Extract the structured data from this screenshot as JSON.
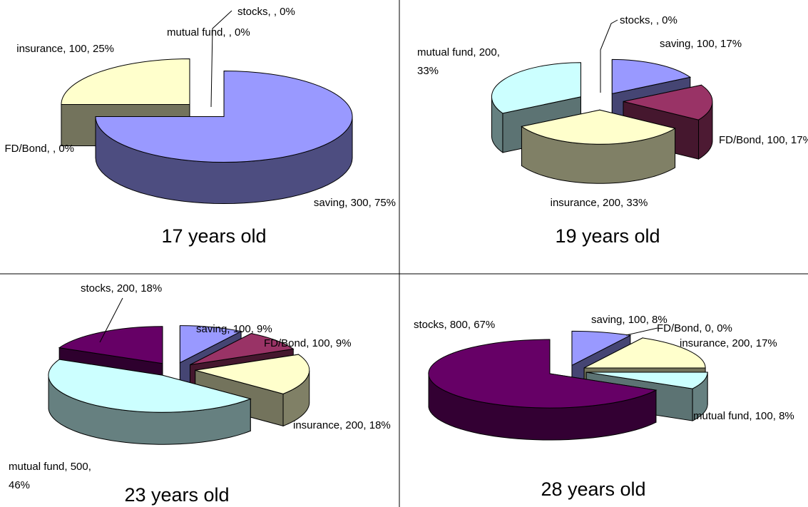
{
  "colors": {
    "saving": "#9999ff",
    "FD/Bond": "#993366",
    "insurance": "#ffffcc",
    "mutual fund": "#ccffff",
    "stocks": "#660066"
  },
  "chart_data": [
    {
      "type": "pie",
      "title": "17 years old",
      "slices": [
        {
          "name": "saving",
          "value": 300,
          "percent": 75,
          "label": "saving, 300, 75%"
        },
        {
          "name": "FD/Bond",
          "value": null,
          "percent": 0,
          "label": "FD/Bond, , 0%"
        },
        {
          "name": "insurance",
          "value": 100,
          "percent": 25,
          "label": "insurance, 100, 25%"
        },
        {
          "name": "mutual fund",
          "value": null,
          "percent": 0,
          "label": "mutual fund, , 0%"
        },
        {
          "name": "stocks",
          "value": null,
          "percent": 0,
          "label": "stocks, , 0%"
        }
      ]
    },
    {
      "type": "pie",
      "title": "19 years old",
      "slices": [
        {
          "name": "saving",
          "value": 100,
          "percent": 17,
          "label": "saving, 100, 17%"
        },
        {
          "name": "FD/Bond",
          "value": 100,
          "percent": 17,
          "label": "FD/Bond, 100, 17%"
        },
        {
          "name": "insurance",
          "value": 200,
          "percent": 33,
          "label": "insurance, 200, 33%"
        },
        {
          "name": "mutual fund",
          "value": 200,
          "percent": 33,
          "label": "mutual fund, 200,\n33%"
        },
        {
          "name": "stocks",
          "value": null,
          "percent": 0,
          "label": "stocks, , 0%"
        }
      ]
    },
    {
      "type": "pie",
      "title": "23 years old",
      "slices": [
        {
          "name": "saving",
          "value": 100,
          "percent": 9,
          "label": "saving, 100, 9%"
        },
        {
          "name": "FD/Bond",
          "value": 100,
          "percent": 9,
          "label": "FD/Bond, 100, 9%"
        },
        {
          "name": "insurance",
          "value": 200,
          "percent": 18,
          "label": "insurance, 200, 18%"
        },
        {
          "name": "mutual fund",
          "value": 500,
          "percent": 46,
          "label": "mutual fund, 500,\n46%"
        },
        {
          "name": "stocks",
          "value": 200,
          "percent": 18,
          "label": "stocks, 200, 18%"
        }
      ]
    },
    {
      "type": "pie",
      "title": "28 years old",
      "slices": [
        {
          "name": "saving",
          "value": 100,
          "percent": 8,
          "label": "saving, 100, 8%"
        },
        {
          "name": "FD/Bond",
          "value": 0,
          "percent": 0,
          "label": "FD/Bond, 0, 0%"
        },
        {
          "name": "insurance",
          "value": 200,
          "percent": 17,
          "label": "insurance, 200, 17%"
        },
        {
          "name": "mutual fund",
          "value": 100,
          "percent": 8,
          "label": "mutual fund, 100, 8%"
        },
        {
          "name": "stocks",
          "value": 800,
          "percent": 67,
          "label": "stocks, 800, 67%"
        }
      ]
    }
  ]
}
